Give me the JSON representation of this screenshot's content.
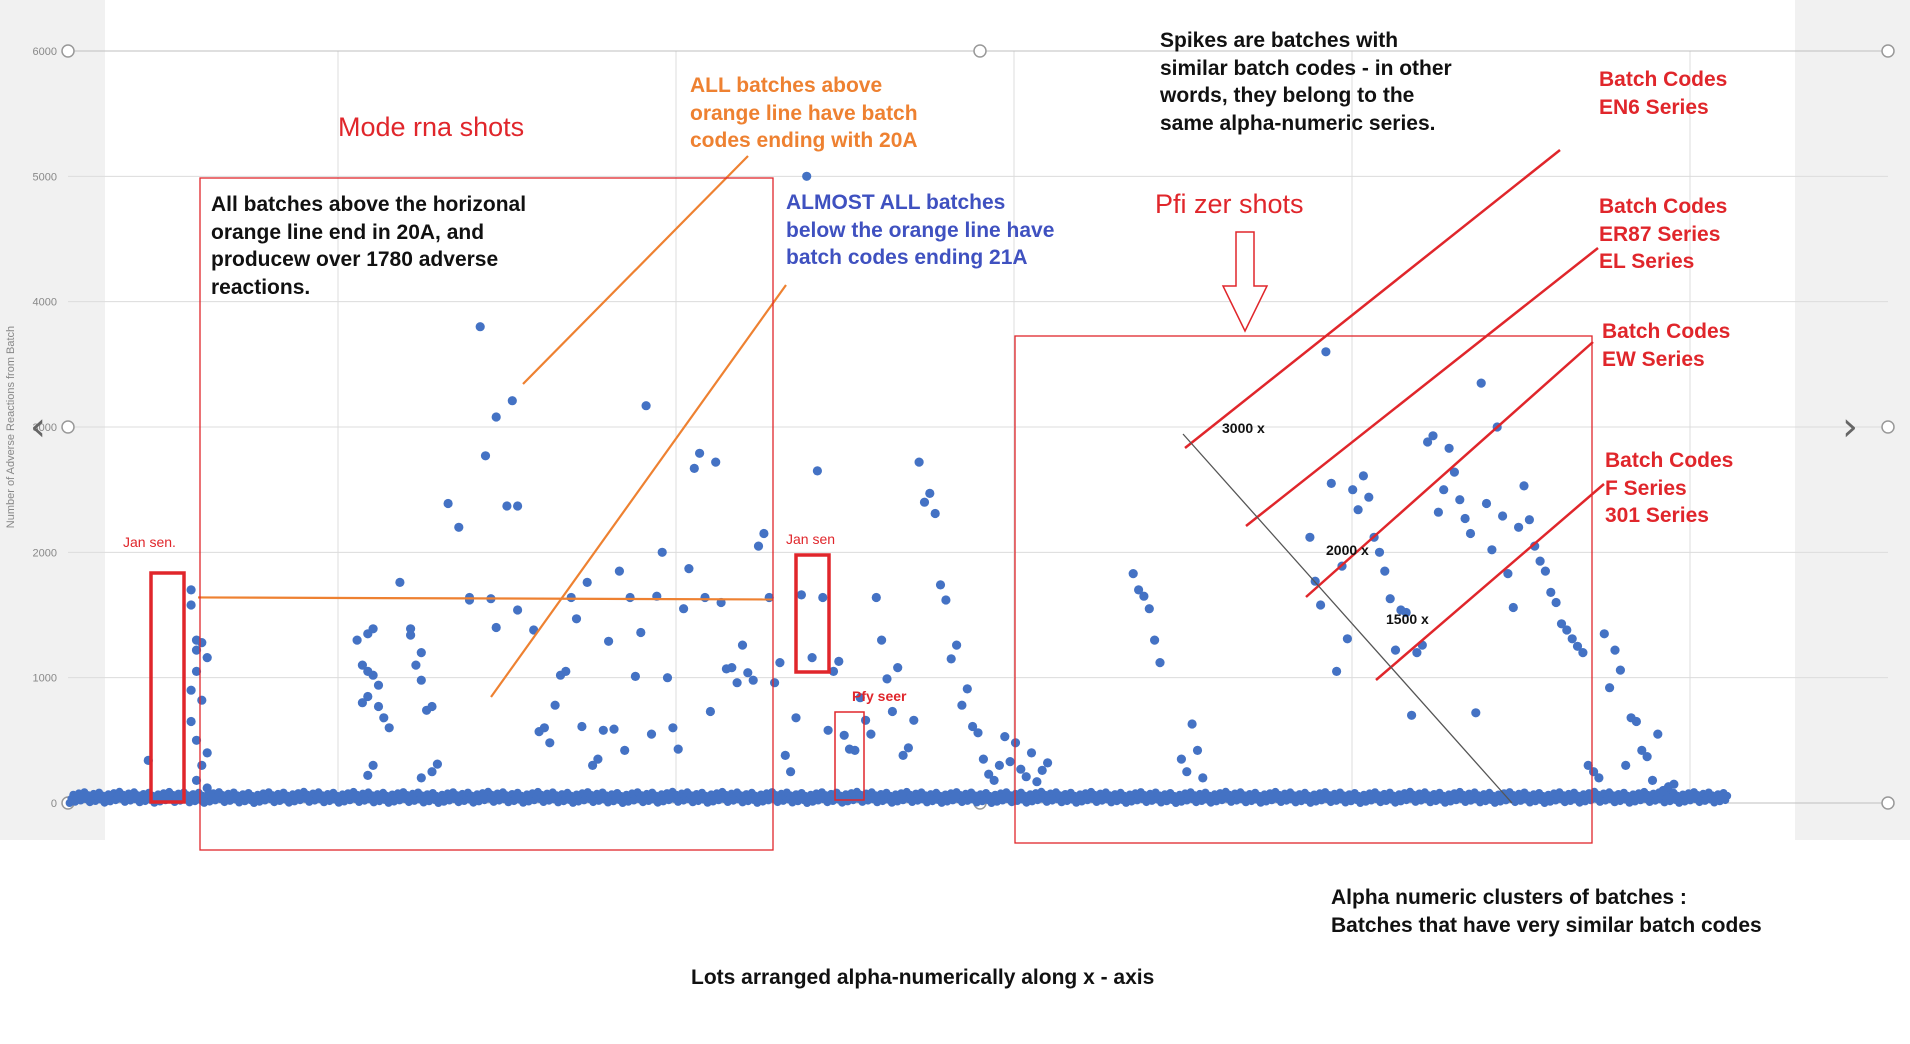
{
  "annotations": {
    "mode_title": "Mode rna shots",
    "pfizer_title": "Pfi zer shots",
    "all_batches_note": [
      "All batches above the horizonal",
      "orange line end in 20A, and",
      "producew over 1780 adverse",
      "reactions."
    ],
    "orange_note": [
      "ALL batches above",
      "orange line have batch",
      "codes ending with 20A"
    ],
    "blue_note": [
      "ALMOST ALL batches",
      "below the orange line have",
      "batch codes ending 21A"
    ],
    "spikes_note": [
      "Spikes are batches with",
      "similar batch codes - in other",
      "words, they belong to the",
      "same alpha-numeric series."
    ],
    "batch_en6": [
      "Batch Codes",
      "EN6 Series"
    ],
    "batch_er87": [
      "Batch Codes",
      "ER87 Series",
      "EL Series"
    ],
    "batch_ew": [
      "Batch Codes",
      "EW Series"
    ],
    "batch_f301": [
      "Batch Codes",
      "F Series",
      "301 Series"
    ],
    "jansen_left": "Jan sen.",
    "jansen_mid": "Jan sen",
    "pfy_seer": "Pfy seer",
    "label_3000": "3000 x",
    "label_2000": "2000 x",
    "label_1500": "1500 x",
    "clusters_note": [
      "Alpha numeric clusters of batches :",
      "Batches that have very similar batch codes"
    ],
    "x_axis_note": "Lots arranged alpha-numerically along x - axis"
  },
  "nav": {
    "prev_icon": "‹",
    "next_icon": "›"
  },
  "colors": {
    "points": "#4472c4",
    "orange": "#ee8131",
    "red": "#e0262b",
    "blue_text": "#3f51c0",
    "grid": "#dcdcdc"
  },
  "chart_data": {
    "type": "scatter",
    "ylabel": "Number of Adverse Reactions from Batch",
    "xlabel": "",
    "ylim": [
      0,
      6000
    ],
    "yticks": [
      0,
      1000,
      2000,
      3000,
      4000,
      5000,
      6000
    ],
    "ytick_labels": [
      "0",
      "1000",
      "2000",
      "3000",
      "4000",
      "5000",
      "6000"
    ],
    "grid": true,
    "threshold_line": 1640,
    "series": [
      {
        "points": [
          [
            15,
            340
          ],
          [
            23,
            1700
          ],
          [
            23,
            1580
          ],
          [
            24,
            1300
          ],
          [
            25,
            1280
          ],
          [
            24,
            1220
          ],
          [
            26,
            1160
          ],
          [
            24,
            1050
          ],
          [
            23,
            900
          ],
          [
            25,
            820
          ],
          [
            23,
            650
          ],
          [
            24,
            500
          ],
          [
            26,
            400
          ],
          [
            25,
            300
          ],
          [
            24,
            180
          ],
          [
            26,
            120
          ],
          [
            54,
            1300
          ],
          [
            56,
            1350
          ],
          [
            57,
            1390
          ],
          [
            55,
            1100
          ],
          [
            56,
            1050
          ],
          [
            57,
            1020
          ],
          [
            58,
            940
          ],
          [
            56,
            850
          ],
          [
            55,
            800
          ],
          [
            58,
            770
          ],
          [
            59,
            680
          ],
          [
            60,
            600
          ],
          [
            57,
            300
          ],
          [
            56,
            220
          ],
          [
            62,
            1760
          ],
          [
            64,
            1390
          ],
          [
            64,
            1340
          ],
          [
            66,
            1200
          ],
          [
            65,
            1100
          ],
          [
            66,
            980
          ],
          [
            68,
            770
          ],
          [
            67,
            740
          ],
          [
            69,
            310
          ],
          [
            68,
            250
          ],
          [
            66,
            200
          ],
          [
            71,
            2390
          ],
          [
            73,
            2200
          ],
          [
            75,
            1620
          ],
          [
            75,
            1640
          ],
          [
            77,
            3800
          ],
          [
            78,
            2770
          ],
          [
            80,
            3080
          ],
          [
            79,
            1630
          ],
          [
            80,
            1400
          ],
          [
            82,
            2370
          ],
          [
            83,
            3210
          ],
          [
            84,
            2370
          ],
          [
            84,
            1540
          ],
          [
            87,
            1380
          ],
          [
            88,
            570
          ],
          [
            89,
            600
          ],
          [
            90,
            480
          ],
          [
            91,
            780
          ],
          [
            92,
            1020
          ],
          [
            93,
            1050
          ],
          [
            94,
            1640
          ],
          [
            95,
            1470
          ],
          [
            96,
            610
          ],
          [
            97,
            1760
          ],
          [
            98,
            300
          ],
          [
            99,
            350
          ],
          [
            100,
            580
          ],
          [
            101,
            1290
          ],
          [
            102,
            590
          ],
          [
            103,
            1850
          ],
          [
            104,
            420
          ],
          [
            105,
            1640
          ],
          [
            106,
            1010
          ],
          [
            107,
            1360
          ],
          [
            108,
            3170
          ],
          [
            109,
            550
          ],
          [
            110,
            1650
          ],
          [
            111,
            2000
          ],
          [
            112,
            1000
          ],
          [
            113,
            600
          ],
          [
            114,
            430
          ],
          [
            115,
            1550
          ],
          [
            116,
            1870
          ],
          [
            117,
            2670
          ],
          [
            118,
            2790
          ],
          [
            119,
            1640
          ],
          [
            120,
            730
          ],
          [
            121,
            2720
          ],
          [
            122,
            1600
          ],
          [
            123,
            1070
          ],
          [
            124,
            1080
          ],
          [
            125,
            960
          ],
          [
            126,
            1260
          ],
          [
            127,
            1040
          ],
          [
            128,
            980
          ],
          [
            129,
            2050
          ],
          [
            130,
            2150
          ],
          [
            131,
            1640
          ],
          [
            132,
            960
          ],
          [
            133,
            1120
          ],
          [
            134,
            380
          ],
          [
            135,
            250
          ],
          [
            136,
            680
          ],
          [
            137,
            1660
          ],
          [
            138,
            5000
          ],
          [
            139,
            1160
          ],
          [
            140,
            2650
          ],
          [
            141,
            1640
          ],
          [
            142,
            580
          ],
          [
            143,
            1050
          ],
          [
            144,
            1130
          ],
          [
            145,
            540
          ],
          [
            146,
            430
          ],
          [
            147,
            420
          ],
          [
            148,
            840
          ],
          [
            149,
            660
          ],
          [
            150,
            550
          ],
          [
            151,
            1640
          ],
          [
            152,
            1300
          ],
          [
            153,
            990
          ],
          [
            154,
            730
          ],
          [
            155,
            1080
          ],
          [
            156,
            380
          ],
          [
            157,
            440
          ],
          [
            158,
            660
          ],
          [
            159,
            2720
          ],
          [
            160,
            2400
          ],
          [
            161,
            2470
          ],
          [
            162,
            2310
          ],
          [
            163,
            1740
          ],
          [
            164,
            1620
          ],
          [
            165,
            1150
          ],
          [
            166,
            1260
          ],
          [
            167,
            780
          ],
          [
            168,
            910
          ],
          [
            169,
            610
          ],
          [
            170,
            560
          ],
          [
            171,
            350
          ],
          [
            172,
            230
          ],
          [
            173,
            180
          ],
          [
            174,
            300
          ],
          [
            175,
            530
          ],
          [
            176,
            330
          ],
          [
            177,
            480
          ],
          [
            178,
            270
          ],
          [
            179,
            210
          ],
          [
            180,
            400
          ],
          [
            181,
            170
          ],
          [
            182,
            260
          ],
          [
            183,
            320
          ],
          [
            199,
            1830
          ],
          [
            200,
            1700
          ],
          [
            201,
            1650
          ],
          [
            202,
            1550
          ],
          [
            203,
            1300
          ],
          [
            204,
            1120
          ],
          [
            208,
            350
          ],
          [
            209,
            250
          ],
          [
            210,
            630
          ],
          [
            211,
            420
          ],
          [
            212,
            200
          ],
          [
            232,
            2120
          ],
          [
            233,
            1770
          ],
          [
            234,
            1580
          ],
          [
            235,
            3600
          ],
          [
            236,
            2550
          ],
          [
            237,
            1050
          ],
          [
            238,
            1890
          ],
          [
            239,
            1310
          ],
          [
            240,
            2500
          ],
          [
            241,
            2340
          ],
          [
            242,
            2610
          ],
          [
            243,
            2440
          ],
          [
            244,
            2120
          ],
          [
            245,
            2000
          ],
          [
            246,
            1850
          ],
          [
            247,
            1630
          ],
          [
            248,
            1220
          ],
          [
            249,
            1540
          ],
          [
            250,
            1520
          ],
          [
            251,
            700
          ],
          [
            252,
            1200
          ],
          [
            253,
            1260
          ],
          [
            254,
            2880
          ],
          [
            255,
            2930
          ],
          [
            256,
            2320
          ],
          [
            257,
            2500
          ],
          [
            258,
            2830
          ],
          [
            259,
            2640
          ],
          [
            260,
            2420
          ],
          [
            261,
            2270
          ],
          [
            262,
            2150
          ],
          [
            263,
            720
          ],
          [
            264,
            3350
          ],
          [
            265,
            2390
          ],
          [
            266,
            2020
          ],
          [
            267,
            3000
          ],
          [
            268,
            2290
          ],
          [
            269,
            1830
          ],
          [
            270,
            1560
          ],
          [
            271,
            2200
          ],
          [
            272,
            2530
          ],
          [
            273,
            2260
          ],
          [
            274,
            2050
          ],
          [
            275,
            1930
          ],
          [
            276,
            1850
          ],
          [
            277,
            1680
          ],
          [
            278,
            1600
          ],
          [
            279,
            1430
          ],
          [
            280,
            1380
          ],
          [
            281,
            1310
          ],
          [
            282,
            1250
          ],
          [
            283,
            1200
          ],
          [
            284,
            300
          ],
          [
            285,
            250
          ],
          [
            286,
            200
          ],
          [
            287,
            1350
          ],
          [
            288,
            920
          ],
          [
            289,
            1220
          ],
          [
            290,
            1060
          ],
          [
            291,
            300
          ],
          [
            292,
            680
          ],
          [
            293,
            650
          ],
          [
            294,
            420
          ],
          [
            295,
            370
          ],
          [
            296,
            180
          ],
          [
            297,
            550
          ],
          [
            298,
            100
          ],
          [
            299,
            130
          ],
          [
            300,
            150
          ]
        ]
      }
    ],
    "annotation_boxes": [
      {
        "label": "Mode rna shots"
      },
      {
        "label": "Pfi zer shots"
      },
      {
        "label": "Jan sen."
      },
      {
        "label": "Jan sen"
      },
      {
        "label": "Pfy seer"
      }
    ]
  }
}
